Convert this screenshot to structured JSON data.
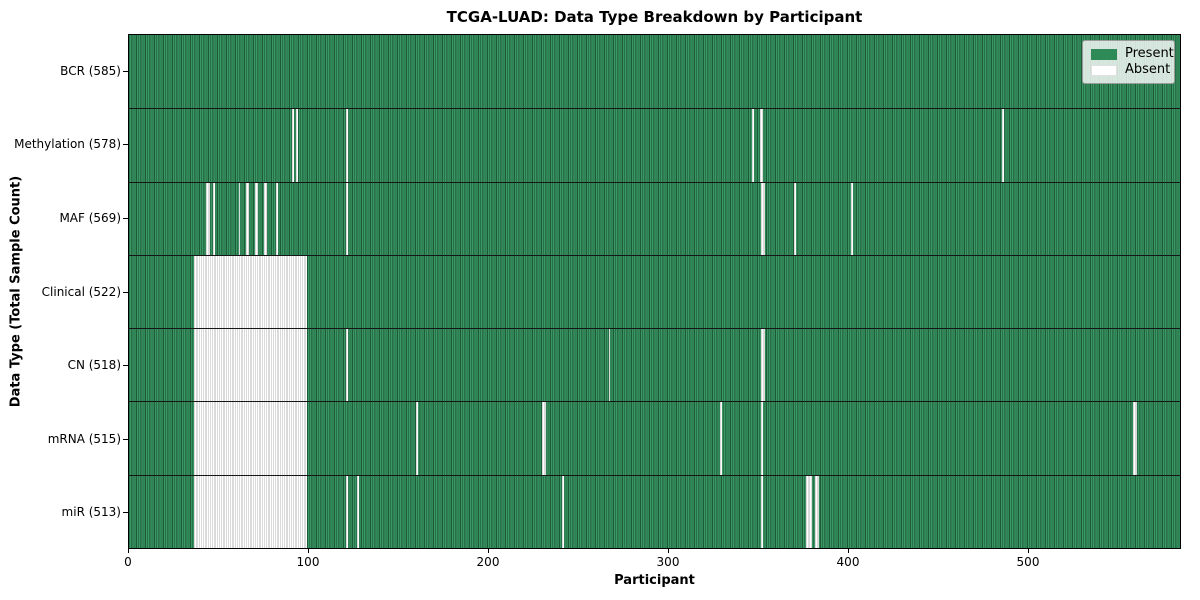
{
  "window": {
    "kind": "chart-figure"
  },
  "chart_data": {
    "type": "heatmap",
    "title": "TCGA-LUAD: Data Type Breakdown by Participant",
    "xlabel": "Participant",
    "ylabel": "Data Type (Total Sample Count)",
    "x_max": 585,
    "x_ticks": [
      0,
      100,
      200,
      300,
      400,
      500
    ],
    "grid": false,
    "legend_position": "upper right",
    "colors": {
      "present": "#2e8b57",
      "present_dark_edge": "#1d5a38",
      "absent": "#ffffff",
      "row_separator": "#161616"
    },
    "legend": [
      {
        "label": "Present",
        "color": "#2e8b57"
      },
      {
        "label": "Absent",
        "color": "#ffffff"
      }
    ],
    "rows": [
      {
        "label": "BCR (585)",
        "data_type": "BCR",
        "present_count": 585,
        "absent_count": 0,
        "absent_runs": []
      },
      {
        "label": "Methylation (578)",
        "data_type": "Methylation",
        "present_count": 578,
        "absent_count": 7,
        "absent_runs": [
          [
            91,
            1
          ],
          [
            93,
            1
          ],
          [
            121,
            1
          ],
          [
            347,
            1
          ],
          [
            351,
            2
          ],
          [
            486,
            1
          ]
        ]
      },
      {
        "label": "MAF (569)",
        "data_type": "MAF",
        "present_count": 569,
        "absent_count": 16,
        "absent_runs": [
          [
            43,
            2
          ],
          [
            47,
            1
          ],
          [
            61,
            1
          ],
          [
            65,
            2
          ],
          [
            70,
            2
          ],
          [
            75,
            2
          ],
          [
            82,
            1
          ],
          [
            121,
            1
          ],
          [
            352,
            2
          ],
          [
            370,
            1
          ],
          [
            402,
            1
          ]
        ]
      },
      {
        "label": "Clinical (522)",
        "data_type": "Clinical",
        "present_count": 522,
        "absent_count": 63,
        "absent_runs": [
          [
            36,
            63
          ]
        ]
      },
      {
        "label": "CN (518)",
        "data_type": "CN",
        "present_count": 518,
        "absent_count": 67,
        "absent_runs": [
          [
            36,
            63
          ],
          [
            121,
            1
          ],
          [
            267,
            1
          ],
          [
            352,
            2
          ]
        ]
      },
      {
        "label": "mRNA (515)",
        "data_type": "mRNA",
        "present_count": 515,
        "absent_count": 70,
        "absent_runs": [
          [
            36,
            63
          ],
          [
            160,
            1
          ],
          [
            230,
            2
          ],
          [
            329,
            1
          ],
          [
            352,
            1
          ],
          [
            559,
            2
          ]
        ]
      },
      {
        "label": "miR (513)",
        "data_type": "miR",
        "present_count": 513,
        "absent_count": 72,
        "absent_runs": [
          [
            36,
            63
          ],
          [
            121,
            1
          ],
          [
            127,
            1
          ],
          [
            241,
            1
          ],
          [
            352,
            1
          ],
          [
            377,
            3
          ],
          [
            382,
            2
          ]
        ]
      }
    ]
  }
}
